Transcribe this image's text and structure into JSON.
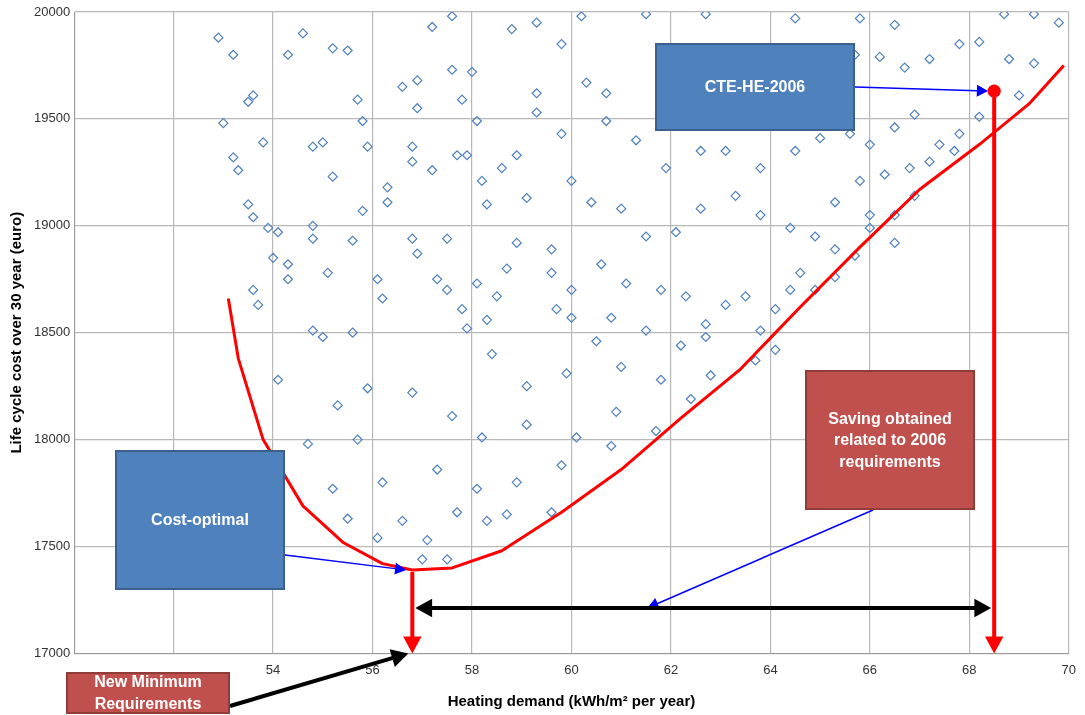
{
  "chart_data": {
    "type": "scatter",
    "xlabel": "Heating demand (kWh/m² per year)",
    "ylabel": "Life cycle cost over 30 year (euro)",
    "xlim": [
      50,
      70
    ],
    "ylim": [
      17000,
      20000
    ],
    "xticks": [
      {
        "value": 50,
        "label": null
      },
      {
        "value": 52,
        "label": null
      },
      54,
      56,
      58,
      60,
      62,
      64,
      66,
      68,
      70
    ],
    "yticks": [
      17000,
      17500,
      18000,
      18500,
      19000,
      19500,
      20000
    ],
    "grid": true,
    "legend": false,
    "marker": "diamond",
    "series": [
      {
        "color": "#4f81bd",
        "x": [
          52.9,
          53.2,
          54.3,
          54.6,
          55.2,
          55.5,
          57.6,
          57.2,
          59.3,
          59.8,
          58.8,
          53.5,
          53.6,
          53.0,
          53.2,
          53.3,
          53.5,
          53.6,
          53.9,
          54.1,
          54.0,
          54.3,
          54.3,
          53.6,
          53.7,
          54.8,
          54.8,
          55.0,
          54.8,
          53.8,
          55.2,
          55.7,
          55.8,
          55.9,
          55.8,
          55.6,
          56.3,
          56.3,
          55.1,
          54.8,
          55.0,
          55.6,
          56.2,
          56.1,
          56.9,
          56.9,
          56.6,
          57.6,
          58.0,
          57.8,
          58.1,
          56.8,
          56.8,
          57.2,
          57.7,
          57.9,
          57.5,
          56.8,
          56.9,
          57.3,
          57.5,
          57.8,
          58.2,
          58.3,
          58.5,
          58.6,
          58.9,
          59.1,
          58.9,
          58.7,
          58.1,
          57.9,
          58.3,
          59.3,
          59.3,
          59.6,
          59.6,
          59.7,
          54.1,
          54.7,
          55.2,
          55.5,
          56.1,
          57.1,
          57.0,
          57.5,
          56.6,
          57.7,
          58.3,
          58.7,
          59.6,
          59.8,
          58.9,
          58.1,
          57.3,
          56.2,
          55.7,
          55.3,
          55.9,
          56.8,
          57.6,
          58.2,
          59.1,
          60.1,
          60.8,
          60.9,
          61.7,
          62.4,
          62.8,
          63.7,
          64.1,
          59.1,
          59.9,
          61.0,
          61.8,
          62.7,
          58.4,
          60.5,
          60.2,
          61.5,
          62.7,
          64.5,
          65.8,
          66.5,
          68.7,
          69.3,
          69.8,
          68.2,
          67.8,
          67.2,
          66.7,
          66.2,
          65.7,
          68.8,
          69.3,
          69.0,
          68.2,
          67.8,
          67.4,
          66.9,
          66.5,
          66.0,
          65.6,
          65.0,
          64.5,
          63.8,
          63.1,
          62.6,
          61.9,
          61.3,
          60.7,
          60.3,
          60.7,
          59.8,
          60.0,
          60.4,
          61.0,
          61.5,
          62.1,
          62.6,
          63.3,
          63.8,
          64.4,
          64.9,
          65.3,
          65.8,
          66.3,
          66.8,
          67.2,
          67.7,
          66.9,
          66.5,
          66.0,
          65.7,
          65.3,
          65.3,
          64.9,
          64.6,
          64.4,
          64.1,
          63.8,
          63.5,
          63.1,
          62.7,
          62.3,
          61.8,
          61.1,
          60.6,
          60.0,
          60.0,
          60.8,
          61.5,
          62.2,
          66.0,
          66.5
        ],
        "values": [
          19880,
          19800,
          19800,
          19900,
          19830,
          19820,
          19980,
          19930,
          19950,
          19850,
          19920,
          19580,
          19610,
          19480,
          19320,
          19260,
          19100,
          19040,
          18990,
          18970,
          18850,
          18820,
          18750,
          18700,
          18630,
          19000,
          18940,
          19390,
          19370,
          19390,
          19230,
          19590,
          19490,
          19370,
          19070,
          18930,
          19110,
          19180,
          18780,
          18510,
          18480,
          18500,
          18660,
          18750,
          19550,
          19680,
          19650,
          19730,
          19720,
          19590,
          19490,
          19370,
          19300,
          19260,
          19330,
          19330,
          18940,
          18940,
          18870,
          18750,
          18700,
          18610,
          19210,
          19100,
          18670,
          19270,
          19330,
          19130,
          18920,
          18800,
          18730,
          18520,
          18560,
          19620,
          19530,
          18890,
          18780,
          18610,
          18280,
          17980,
          17770,
          17630,
          17540,
          17530,
          17440,
          17440,
          17620,
          17660,
          17620,
          17650,
          17660,
          17880,
          17800,
          17770,
          17860,
          17800,
          18000,
          18160,
          18240,
          18220,
          18110,
          18010,
          18070,
          18010,
          17970,
          18130,
          18040,
          18190,
          18300,
          18370,
          18420,
          18250,
          18310,
          18340,
          18280,
          18480,
          18400,
          18460,
          19980,
          19990,
          19990,
          19970,
          19970,
          19940,
          19990,
          19990,
          19950,
          19860,
          19850,
          19780,
          19740,
          19790,
          19800,
          19780,
          19760,
          19610,
          19510,
          19430,
          19380,
          19520,
          19460,
          19380,
          19430,
          19410,
          19350,
          19270,
          19350,
          19350,
          19270,
          19400,
          19490,
          19670,
          19620,
          19430,
          19210,
          19110,
          19080,
          18950,
          18970,
          19080,
          19140,
          19050,
          18990,
          18950,
          19110,
          19210,
          19240,
          19270,
          19300,
          19350,
          19140,
          19050,
          18990,
          18860,
          18890,
          18760,
          18700,
          18780,
          18700,
          18610,
          18510,
          18670,
          18630,
          18540,
          18670,
          18700,
          18730,
          18820,
          18700,
          18570,
          18570,
          18510,
          18440,
          19050,
          18920
        ]
      },
      {
        "type": "line",
        "color": "#ff0000",
        "marker": "none",
        "x": [
          53.1,
          53.3,
          53.8,
          54.6,
          55.4,
          56.2,
          56.8,
          57.6,
          58.6,
          59.8,
          61.0,
          62.2,
          63.4,
          64.6,
          65.8,
          67.0,
          68.2,
          69.2,
          69.9
        ],
        "values": [
          18660,
          18380,
          18000,
          17690,
          17520,
          17420,
          17390,
          17400,
          17480,
          17660,
          17860,
          18100,
          18330,
          18620,
          18900,
          19170,
          19380,
          19570,
          19750
        ]
      },
      {
        "color": "#ff0000",
        "marker": "circle",
        "x": [
          68.5
        ],
        "values": [
          19630
        ]
      }
    ],
    "annotations": [
      "CTE-HE-2006",
      "Cost-optimal",
      "Saving obtained related to 2006 requirements",
      "New Minimum Requirements"
    ]
  }
}
